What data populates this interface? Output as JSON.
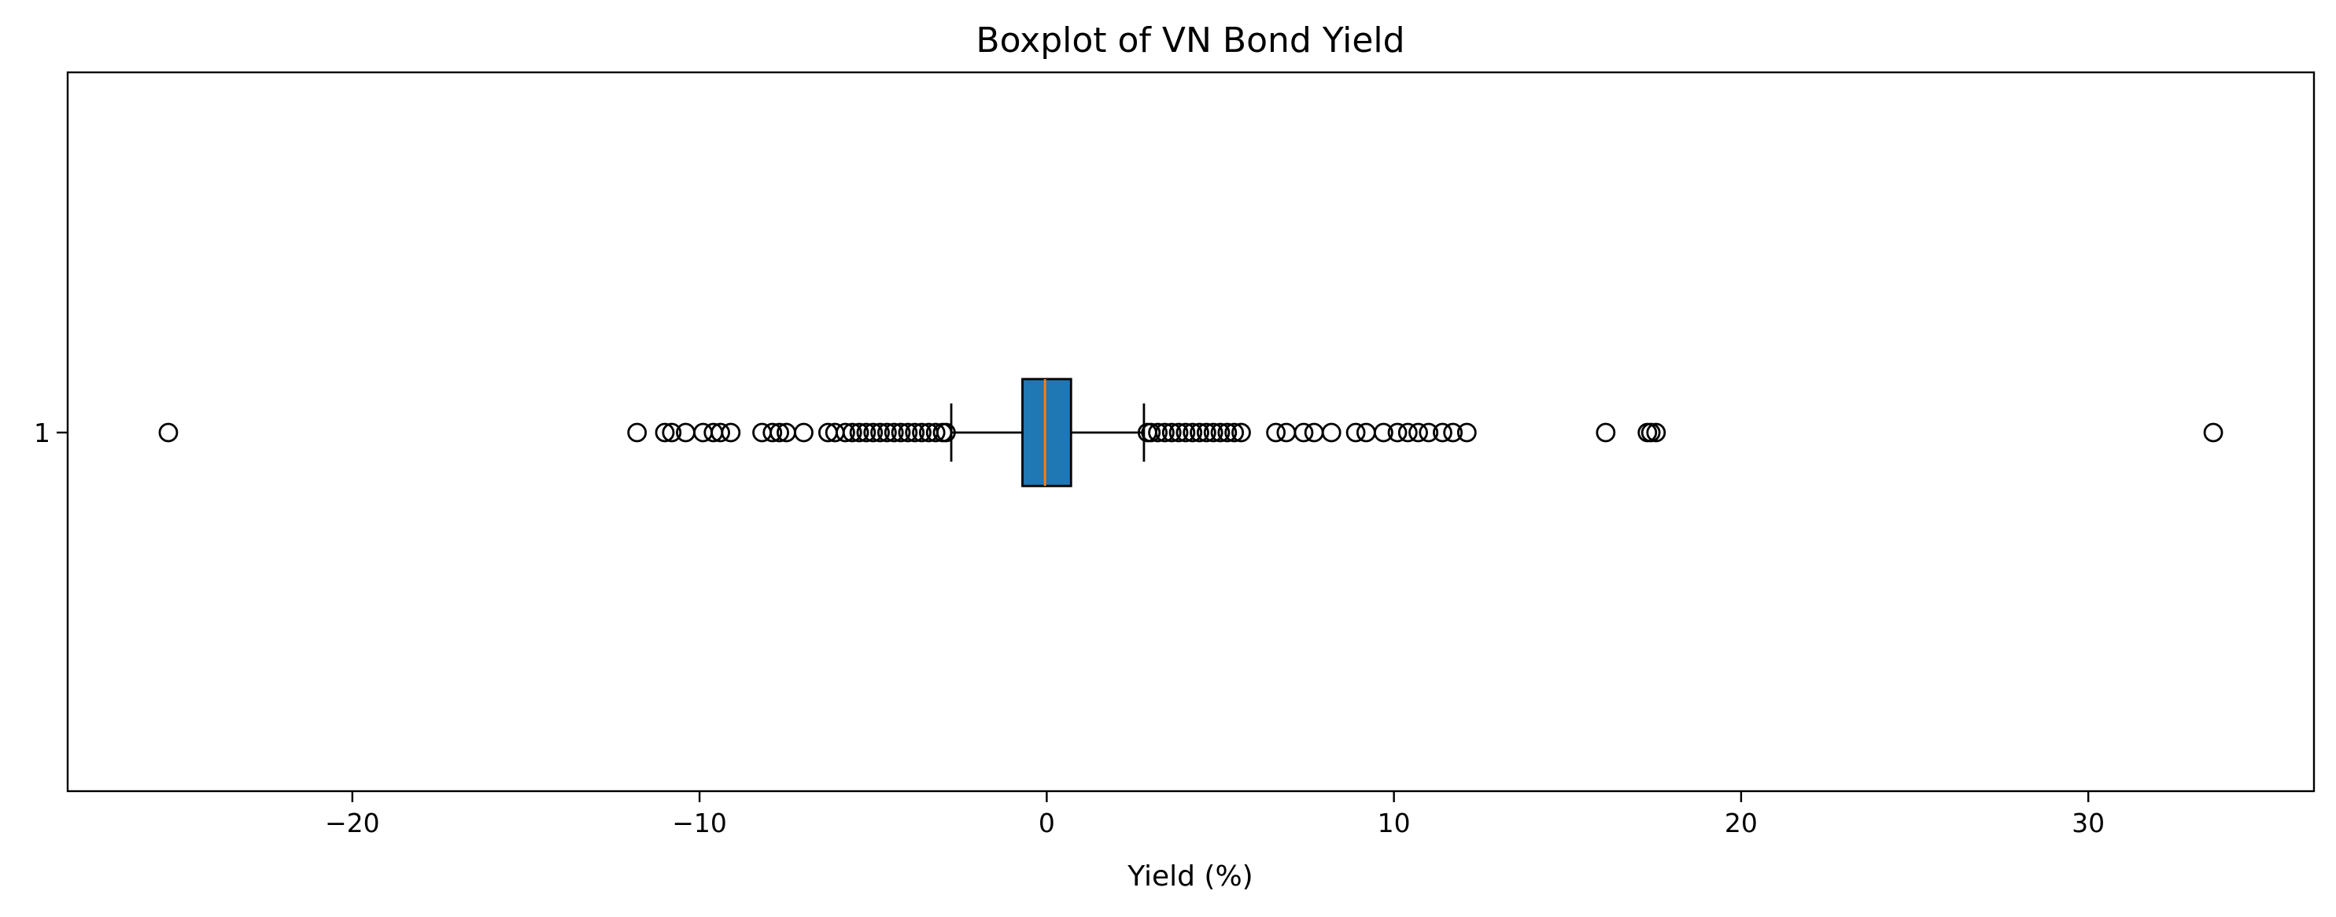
{
  "chart_data": {
    "type": "boxplot",
    "orientation": "horizontal",
    "title": "Boxplot of VN Bond Yield",
    "xlabel": "Yield (%)",
    "ylabel": "",
    "xlim": [
      -28.2,
      36.5
    ],
    "xticks": [
      -20,
      -10,
      0,
      10,
      20,
      30
    ],
    "xtick_labels": [
      "−20",
      "−10",
      "0",
      "10",
      "20",
      "30"
    ],
    "yticks": [
      1
    ],
    "ytick_labels": [
      "1"
    ],
    "grid": false,
    "box": {
      "position": 1,
      "whisker_low": -2.75,
      "q1": -0.7,
      "median": -0.05,
      "q3": 0.7,
      "whisker_high": 2.8
    },
    "outliers": [
      -25.3,
      -11.8,
      -11.0,
      -10.8,
      -10.4,
      -9.9,
      -9.6,
      -9.4,
      -9.1,
      -8.2,
      -7.9,
      -7.7,
      -7.5,
      -7.0,
      -6.3,
      -6.1,
      -5.8,
      -5.6,
      -5.4,
      -5.2,
      -5.0,
      -4.8,
      -4.6,
      -4.4,
      -4.2,
      -4.0,
      -3.8,
      -3.6,
      -3.4,
      -3.2,
      -3.0,
      -2.9,
      2.9,
      3.0,
      3.2,
      3.4,
      3.6,
      3.8,
      4.0,
      4.2,
      4.4,
      4.6,
      4.8,
      5.0,
      5.2,
      5.4,
      5.6,
      6.6,
      6.9,
      7.4,
      7.7,
      8.2,
      8.9,
      9.2,
      9.7,
      10.1,
      10.4,
      10.7,
      11.0,
      11.4,
      11.7,
      12.1,
      16.1,
      17.3,
      17.4,
      17.55,
      33.6
    ],
    "colors": {
      "box_fill": "#1f77b4",
      "median": "#ff7f0e",
      "edge": "#000000"
    }
  }
}
